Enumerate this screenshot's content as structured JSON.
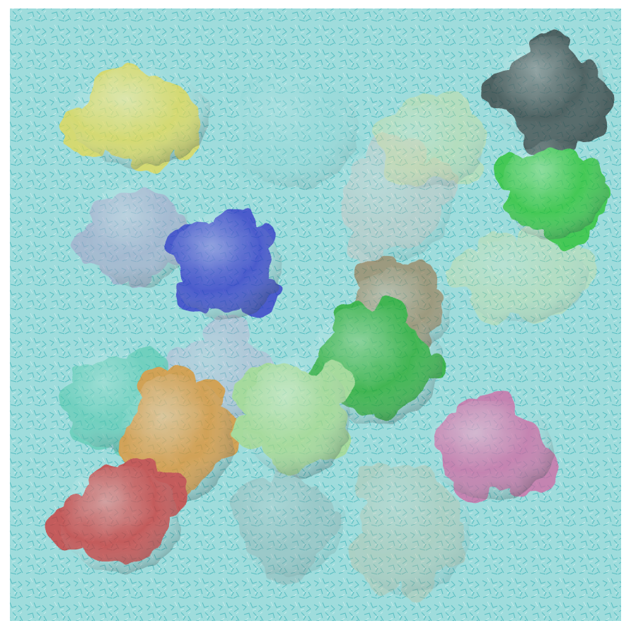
{
  "scene": {
    "background_color": "#ffffff",
    "solvent_color": "#8fd6d6",
    "solvent_line_color": "#4fb7bd",
    "proteins": [
      {
        "name": "protein-yellow-top-left",
        "color": "#e8d84a",
        "depth": "front"
      },
      {
        "name": "protein-cyan-top-center",
        "color": "#8fd6d6",
        "depth": "back"
      },
      {
        "name": "protein-black-top-right",
        "color": "#2f3333",
        "depth": "front"
      },
      {
        "name": "protein-green-top-right",
        "color": "#22c022",
        "depth": "front"
      },
      {
        "name": "protein-pale-yellow-top-right",
        "color": "#e2e08a",
        "depth": "back"
      },
      {
        "name": "protein-pink-center",
        "color": "#e8b7b0",
        "depth": "back"
      },
      {
        "name": "protein-lavender-left",
        "color": "#a8a1c9",
        "depth": "middle"
      },
      {
        "name": "protein-blue-left",
        "color": "#2a2ac6",
        "depth": "front"
      },
      {
        "name": "protein-pale-yellow-right",
        "color": "#e6e07c",
        "depth": "back"
      },
      {
        "name": "protein-brown-center",
        "color": "#9b6a3a",
        "depth": "middle"
      },
      {
        "name": "protein-green-center",
        "color": "#1ea61e",
        "depth": "front"
      },
      {
        "name": "protein-teal-bottom-left",
        "color": "#4fc7aa",
        "depth": "middle"
      },
      {
        "name": "protein-violet-bottom-left",
        "color": "#d59bd0",
        "depth": "back"
      },
      {
        "name": "protein-orange-bottom-left",
        "color": "#e58b24",
        "depth": "front"
      },
      {
        "name": "protein-light-green-center",
        "color": "#a9d985",
        "depth": "front"
      },
      {
        "name": "protein-magenta-bottom-right",
        "color": "#d262a0",
        "depth": "front"
      },
      {
        "name": "protein-red-bottom-left",
        "color": "#d12a2a",
        "depth": "front"
      },
      {
        "name": "protein-gray-bottom-center",
        "color": "#8d9a9a",
        "depth": "back"
      },
      {
        "name": "protein-tan-bottom-right",
        "color": "#c7b48f",
        "depth": "back"
      }
    ]
  }
}
